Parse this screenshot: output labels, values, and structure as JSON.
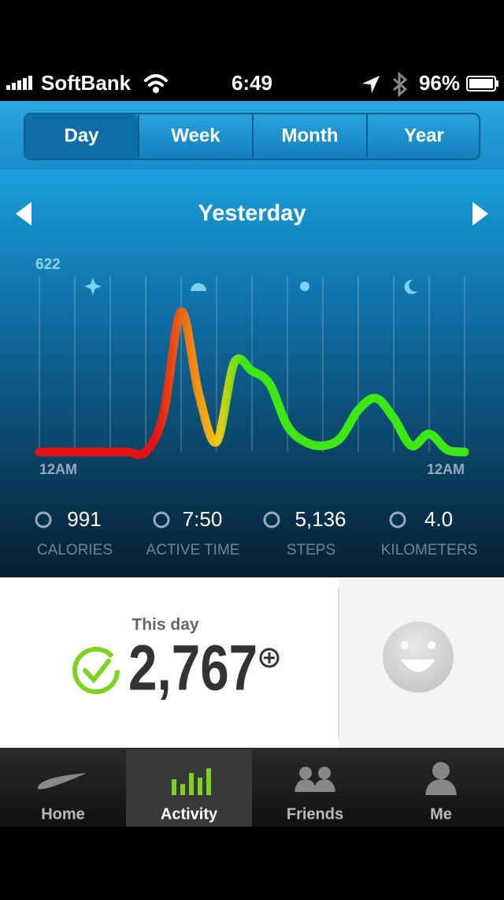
{
  "status_bar": {
    "carrier": "SoftBank",
    "time": "6:49",
    "battery": "96%"
  },
  "segments": [
    "Day",
    "Week",
    "Month",
    "Year"
  ],
  "period": "Yesterday",
  "chart_data": {
    "type": "line",
    "categories": [
      "12AM",
      null,
      null,
      null,
      null,
      null,
      null,
      null,
      null,
      null,
      null,
      null,
      null,
      null,
      null,
      null,
      null,
      null,
      null,
      null,
      null,
      null,
      null,
      null,
      "12AM"
    ],
    "values": [
      0,
      0,
      0,
      0,
      0,
      0,
      0,
      134,
      496,
      204,
      36,
      315,
      287,
      240,
      92,
      36,
      22,
      50,
      148,
      190,
      120,
      22,
      64,
      8,
      0
    ],
    "colors": [
      "#e01212",
      "#e01212",
      "#f07a12",
      "#f0c814",
      "#3ee814",
      "#3ee814"
    ],
    "ylim": [
      0,
      622
    ],
    "yticks": [
      622
    ]
  },
  "stats": [
    {
      "value": "991",
      "label": "CALORIES"
    },
    {
      "value": "7:50",
      "label": "ACTIVE TIME"
    },
    {
      "value": "5,136",
      "label": "STEPS"
    },
    {
      "value": "4.0",
      "label": "KILOMETERS"
    }
  ],
  "summary": {
    "caption": "This day",
    "fuel": "2,767"
  },
  "tabs": [
    "Home",
    "Activity",
    "Friends",
    "Me"
  ]
}
